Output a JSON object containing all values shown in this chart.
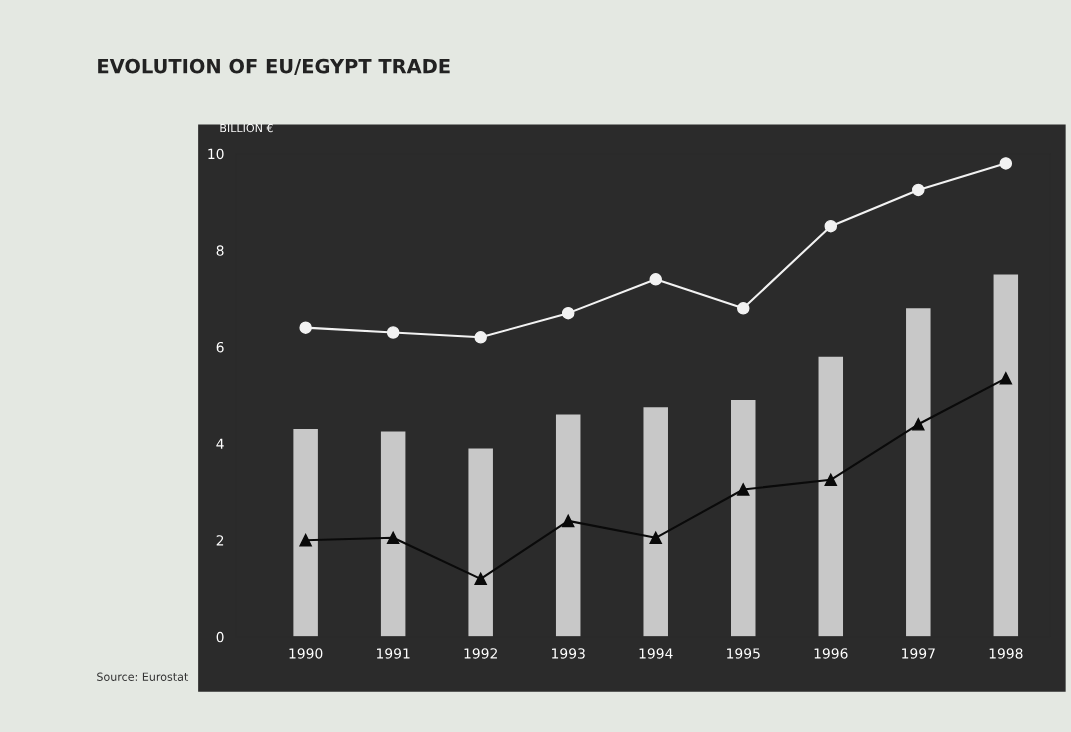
{
  "chart_data": {
    "type": "bar",
    "title": "EVOLUTION OF EU/EGYPT TRADE",
    "ylabel": "BILLION €",
    "categories": [
      "1990",
      "1991",
      "1992",
      "1993",
      "1994",
      "1995",
      "1996",
      "1997",
      "1998"
    ],
    "series": [
      {
        "color": "#c8c8c8",
        "values": [
          4.3,
          4.25,
          3.9,
          4.6,
          4.75,
          4.9,
          5.8,
          6.8,
          7.5
        ]
      },
      {
        "type": "line",
        "color": "#f2f2f2",
        "marker": "circle",
        "values": [
          6.4,
          6.3,
          6.2,
          6.7,
          7.4,
          6.8,
          8.5,
          9.25,
          9.8
        ]
      },
      {
        "type": "line",
        "color": "#0a0a0a",
        "marker": "triangle",
        "values": [
          2.0,
          2.05,
          1.2,
          2.4,
          2.05,
          3.05,
          3.25,
          4.4,
          5.35
        ]
      }
    ],
    "ylim": [
      0,
      10
    ],
    "yticks": [
      0,
      2,
      4,
      6,
      8,
      10
    ],
    "annotations": [
      "Source: Eurostat"
    ]
  }
}
